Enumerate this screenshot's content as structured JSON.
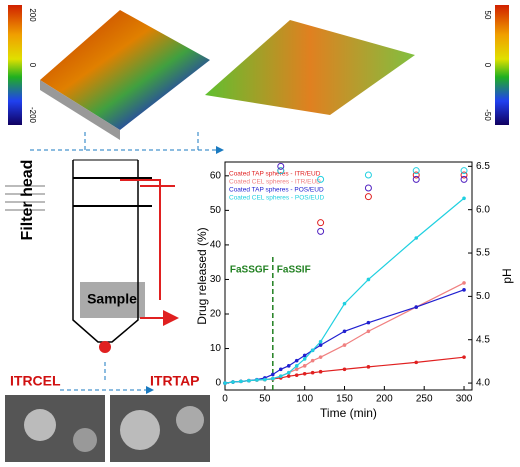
{
  "chart_data": {
    "type": "line",
    "xlabel": "Time (min)",
    "ylabel": "Drug released (%)",
    "y2label": "pH",
    "xlim": [
      0,
      310
    ],
    "xticks": [
      0,
      50,
      100,
      150,
      200,
      250,
      300
    ],
    "ylim": [
      -2,
      64
    ],
    "yticks": [
      0,
      10,
      20,
      30,
      40,
      50,
      60
    ],
    "y2lim": [
      3.92,
      6.55
    ],
    "y2ticks": [
      {
        "value": 4.0,
        "label": "4.0"
      },
      {
        "value": 4.5,
        "label": "4.5"
      },
      {
        "value": 5.0,
        "label": "5.0"
      },
      {
        "value": 5.5,
        "label": "5.5"
      },
      {
        "value": 6.0,
        "label": "6.0"
      },
      {
        "value": 6.5,
        "label": "6.5"
      }
    ],
    "vline": 60,
    "annotations": [
      "FaSSGF",
      "FaSSIF"
    ],
    "x": [
      0,
      10,
      20,
      30,
      40,
      50,
      60,
      70,
      80,
      90,
      100,
      110,
      120,
      150,
      180,
      240,
      300
    ],
    "series": [
      {
        "name": "Coated TAP spheres - ITR/EUD",
        "color": "#e02020",
        "values": [
          0,
          0.3,
          0.5,
          0.7,
          0.9,
          1,
          1.2,
          1.5,
          2,
          2.3,
          2.7,
          3,
          3.3,
          4,
          4.7,
          6,
          7.5
        ]
      },
      {
        "name": "Coated CEL spheres - ITR/EUD",
        "color": "#f08080",
        "values": [
          0,
          0.3,
          0.5,
          0.7,
          0.9,
          1,
          1.3,
          2,
          3,
          4,
          5,
          6.5,
          7.5,
          11,
          15,
          22,
          29
        ]
      },
      {
        "name": "Coated TAP spheres - POS/EUD",
        "color": "#2020d0",
        "values": [
          0,
          0.3,
          0.5,
          0.7,
          1,
          1.5,
          2.5,
          4,
          5,
          6.5,
          8,
          9.5,
          11,
          15,
          17.5,
          22,
          27
        ]
      },
      {
        "name": "Coated CEL spheres - POS/EUD",
        "color": "#20d0e0",
        "values": [
          0,
          0.3,
          0.5,
          0.7,
          0.9,
          1,
          1.3,
          2,
          3,
          5,
          7,
          9.5,
          12,
          23,
          30,
          42,
          53.5
        ]
      }
    ],
    "ph_x": [
      70,
      120,
      180,
      240,
      300
    ],
    "ph_series": [
      {
        "color": "#e02020",
        "values": [
          6.45,
          5.85,
          6.15,
          6.4,
          6.4
        ]
      },
      {
        "color": "#20d0e0",
        "values": [
          6.45,
          6.35,
          6.4,
          6.45,
          6.45
        ]
      },
      {
        "color": "#5020c0",
        "values": [
          6.5,
          5.75,
          6.25,
          6.35,
          6.35
        ]
      }
    ]
  },
  "diagram": {
    "filter_label": "Filter head",
    "sample_label": "Sample",
    "left_image_label": "ITRCEL",
    "right_image_label": "ITRTAP",
    "left_colorbar_ticks": [
      "200",
      "0",
      "-200"
    ],
    "right_colorbar_ticks": [
      "50",
      "0",
      "-50"
    ]
  }
}
